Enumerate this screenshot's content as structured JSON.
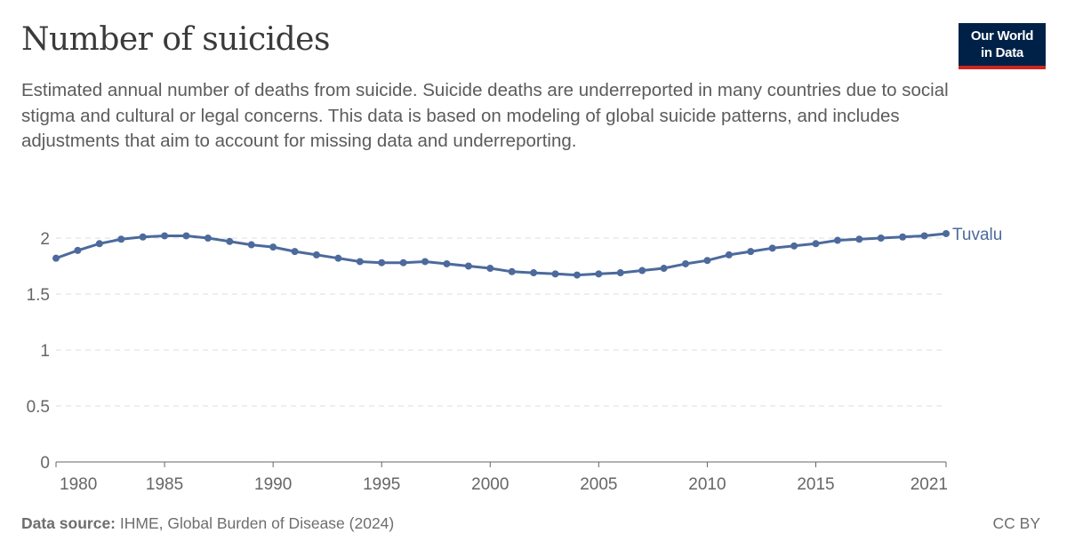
{
  "header": {
    "title": "Number of suicides",
    "subtitle_lines": [
      "Estimated annual number of deaths from suicide. Suicide deaths are underreported in many countries due to social",
      "stigma and cultural or legal concerns. This data is based on modeling of global suicide patterns, and includes",
      "adjustments that aim to account for missing data and underreporting."
    ],
    "logo_lines": [
      "Our World",
      "in Data"
    ]
  },
  "footer": {
    "source_label": "Data source:",
    "source_text": "IHME, Global Burden of Disease (2024)",
    "license": "CC BY"
  },
  "colors": {
    "series": "#4c6a9c",
    "grid": "#dddddd",
    "axis": "#666666",
    "logo_bg": "#002147",
    "logo_accent": "#ce261e"
  },
  "chart_data": {
    "type": "line",
    "xlim": [
      1980,
      2021
    ],
    "ylim": [
      0,
      2
    ],
    "yticks": [
      0,
      0.5,
      1,
      1.5,
      2
    ],
    "ytick_labels": [
      "0",
      "0.5",
      "1",
      "1.5",
      "2"
    ],
    "xticks": [
      1980,
      1985,
      1990,
      1995,
      2000,
      2005,
      2010,
      2015,
      2021
    ],
    "xtick_labels": [
      "1980",
      "1985",
      "1990",
      "1995",
      "2000",
      "2005",
      "2010",
      "2015",
      "2021"
    ],
    "grid": true,
    "x": [
      1980,
      1981,
      1982,
      1983,
      1984,
      1985,
      1986,
      1987,
      1988,
      1989,
      1990,
      1991,
      1992,
      1993,
      1994,
      1995,
      1996,
      1997,
      1998,
      1999,
      2000,
      2001,
      2002,
      2003,
      2004,
      2005,
      2006,
      2007,
      2008,
      2009,
      2010,
      2011,
      2012,
      2013,
      2014,
      2015,
      2016,
      2017,
      2018,
      2019,
      2020,
      2021
    ],
    "series": [
      {
        "name": "Tuvalu",
        "values": [
          1.82,
          1.89,
          1.95,
          1.99,
          2.01,
          2.02,
          2.02,
          2.0,
          1.97,
          1.94,
          1.92,
          1.88,
          1.85,
          1.82,
          1.79,
          1.78,
          1.78,
          1.79,
          1.77,
          1.75,
          1.73,
          1.7,
          1.69,
          1.68,
          1.67,
          1.68,
          1.69,
          1.71,
          1.73,
          1.77,
          1.8,
          1.85,
          1.88,
          1.91,
          1.93,
          1.95,
          1.98,
          1.99,
          2.0,
          2.01,
          2.02,
          2.04
        ]
      }
    ]
  }
}
